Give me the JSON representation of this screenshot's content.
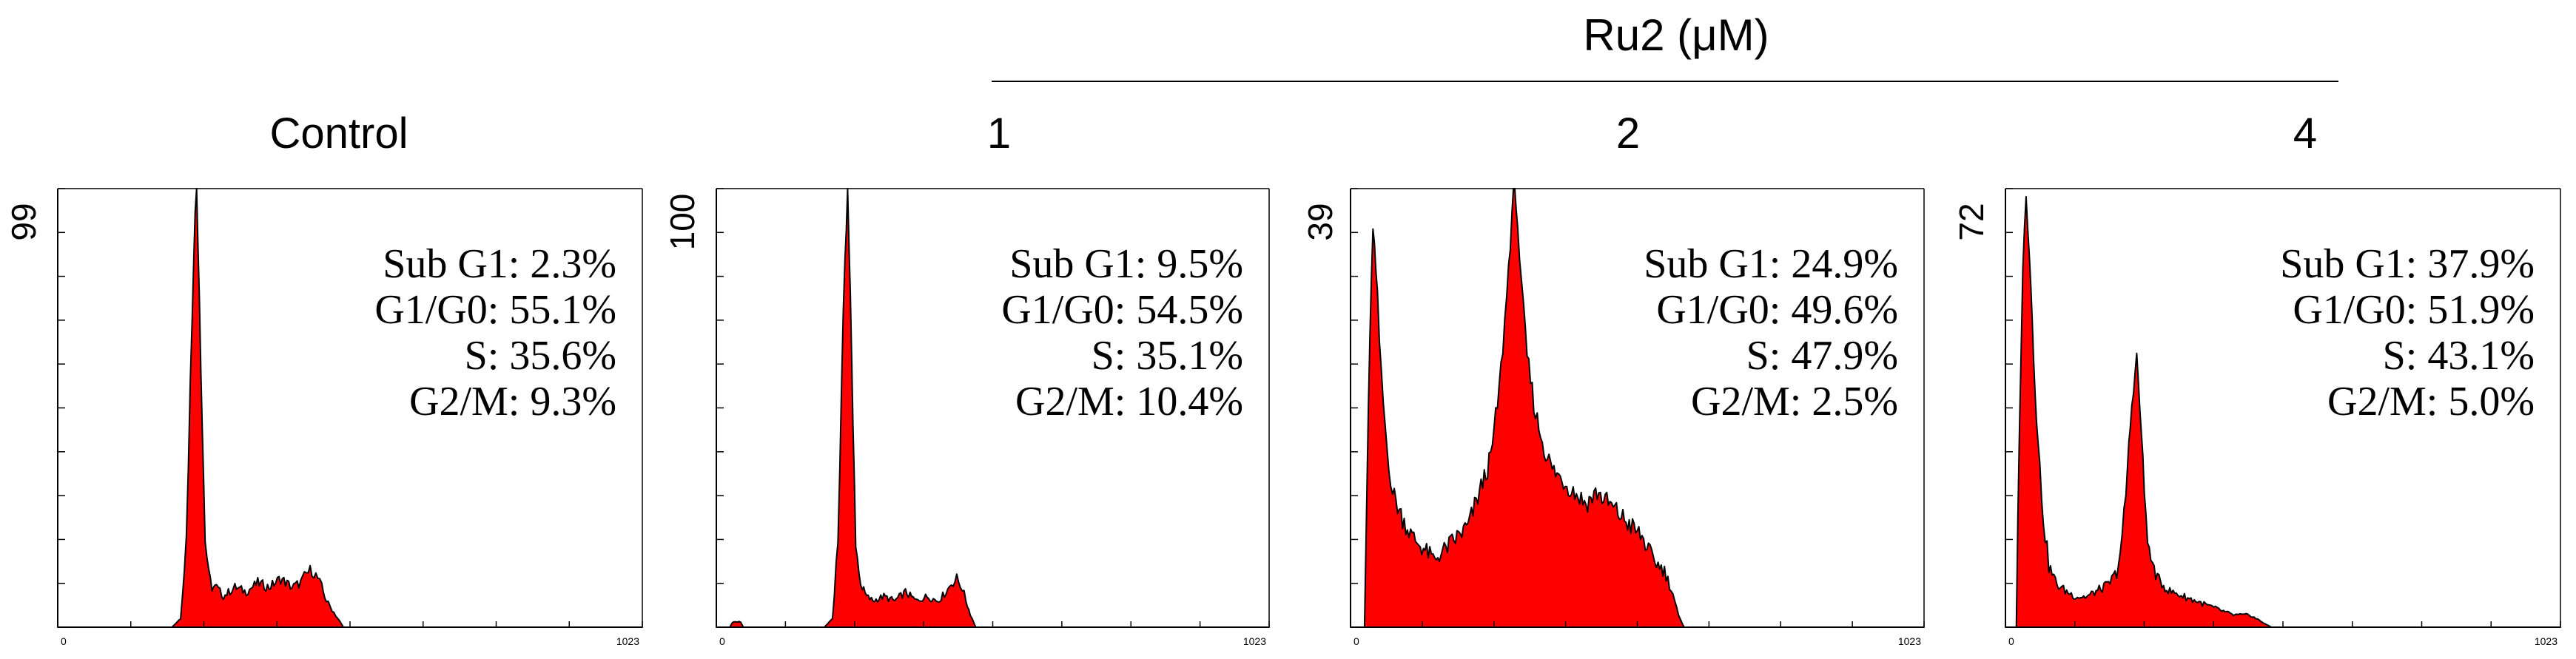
{
  "group_label": "Ru2 (μM)",
  "x_axis": {
    "min_label": "0",
    "max_label": "1023"
  },
  "chart_data": [
    {
      "type": "area",
      "title": "Control",
      "ymax_label": "99",
      "xlim": [
        0,
        1023
      ],
      "ylim": [
        0,
        99
      ],
      "stats": [
        {
          "label": "Sub G1: 2.3%"
        },
        {
          "label": "G1/G0: 55.1%"
        },
        {
          "label": "S: 35.6%"
        },
        {
          "label": "G2/M: 9.3%"
        }
      ],
      "x": [
        0,
        120,
        170,
        200,
        215,
        225,
        232,
        238,
        243,
        248,
        253,
        258,
        264,
        270,
        278,
        290,
        310,
        330,
        350,
        370,
        390,
        410,
        425,
        435,
        445,
        455,
        462,
        470,
        480,
        490,
        500,
        1023
      ],
      "y": [
        0,
        0,
        0,
        0,
        2,
        20,
        55,
        85,
        100,
        75,
        45,
        20,
        12,
        9,
        9,
        7,
        9,
        8,
        10,
        9,
        11,
        9,
        10,
        12,
        13,
        11,
        9,
        6,
        4,
        2,
        0,
        0
      ],
      "color": "#ff0000"
    },
    {
      "type": "area",
      "title": "1",
      "ymax_label": "100",
      "xlim": [
        0,
        1023
      ],
      "ylim": [
        0,
        100
      ],
      "stats": [
        {
          "label": "Sub G1: 9.5%"
        },
        {
          "label": "G1/G0: 54.5%"
        },
        {
          "label": "S: 35.1%"
        },
        {
          "label": "G2/M: 10.4%"
        }
      ],
      "x": [
        0,
        25,
        30,
        45,
        50,
        60,
        200,
        215,
        225,
        232,
        238,
        243,
        248,
        253,
        258,
        264,
        270,
        278,
        290,
        310,
        330,
        350,
        370,
        390,
        410,
        425,
        435,
        445,
        455,
        462,
        470,
        480,
        1023
      ],
      "y": [
        0,
        0,
        1.2,
        1.2,
        0,
        0,
        0,
        2,
        20,
        55,
        85,
        100,
        75,
        45,
        20,
        12,
        9,
        7,
        6,
        7,
        6,
        8,
        6,
        7,
        6,
        8,
        10,
        11,
        9,
        6,
        3,
        0,
        0
      ],
      "color": "#ff0000"
    },
    {
      "type": "area",
      "title": "2",
      "ymax_label": "39",
      "xlim": [
        0,
        1023
      ],
      "ylim": [
        0,
        39
      ],
      "stats": [
        {
          "label": "Sub G1: 24.9%"
        },
        {
          "label": "G1/G0: 49.6%"
        },
        {
          "label": "S: 47.9%"
        },
        {
          "label": "G2/M: 2.5%"
        }
      ],
      "x": [
        0,
        25,
        32,
        40,
        48,
        55,
        65,
        75,
        90,
        110,
        130,
        150,
        170,
        190,
        210,
        230,
        250,
        265,
        275,
        282,
        288,
        293,
        298,
        305,
        315,
        330,
        345,
        360,
        380,
        400,
        420,
        440,
        460,
        480,
        500,
        520,
        540,
        560,
        575,
        585,
        595,
        1023
      ],
      "y": [
        0,
        0,
        20,
        36,
        29,
        22,
        16,
        12,
        10,
        8,
        7,
        6,
        7,
        8,
        9,
        12,
        15,
        21,
        27,
        32,
        37,
        40,
        36,
        30,
        24,
        19,
        16,
        14,
        13,
        12,
        11,
        12,
        11,
        10,
        9,
        8,
        6,
        5,
        3,
        1,
        0,
        0
      ],
      "color": "#ff0000"
    },
    {
      "type": "area",
      "title": "4",
      "ymax_label": "72",
      "xlim": [
        0,
        1023
      ],
      "ylim": [
        0,
        72
      ],
      "stats": [
        {
          "label": "Sub G1: 37.9%"
        },
        {
          "label": "G1/G0: 51.9%"
        },
        {
          "label": "S: 43.1%"
        },
        {
          "label": "G2/M: 5.0%"
        }
      ],
      "x": [
        0,
        20,
        26,
        32,
        38,
        44,
        52,
        60,
        70,
        80,
        95,
        110,
        130,
        150,
        170,
        190,
        205,
        215,
        222,
        230,
        236,
        242,
        248,
        256,
        265,
        280,
        300,
        330,
        360,
        390,
        420,
        450,
        470,
        490,
        1023
      ],
      "y": [
        0,
        0,
        35,
        58,
        72,
        62,
        45,
        30,
        18,
        10,
        7,
        6,
        5,
        5,
        6,
        7,
        9,
        14,
        22,
        33,
        40,
        44,
        36,
        22,
        12,
        8,
        6,
        5,
        4,
        3,
        2,
        2,
        1,
        0,
        0
      ],
      "color": "#ff0000"
    }
  ]
}
